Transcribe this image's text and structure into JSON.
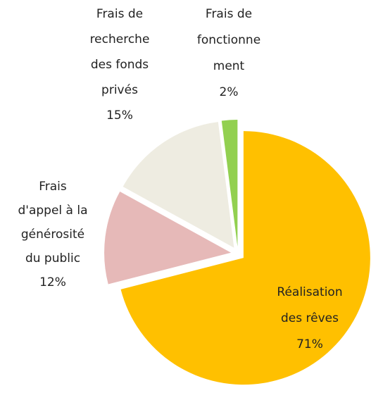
{
  "chart_data": {
    "type": "pie",
    "categories": [
      [
        "Réalisation",
        "des rêves"
      ],
      [
        "Frais",
        "d'appel à la",
        "générosité",
        "du public"
      ],
      [
        "Frais de",
        "recherche",
        "des fonds",
        "privés"
      ],
      [
        "Frais de",
        "fonctionne",
        "ment"
      ]
    ],
    "values": [
      71,
      12,
      15,
      2
    ],
    "value_labels": [
      "71%",
      "12%",
      "15%",
      "2%"
    ],
    "colors": [
      "#FFC000",
      "#E6B9B8",
      "#EEECE1",
      "#92D050"
    ]
  }
}
